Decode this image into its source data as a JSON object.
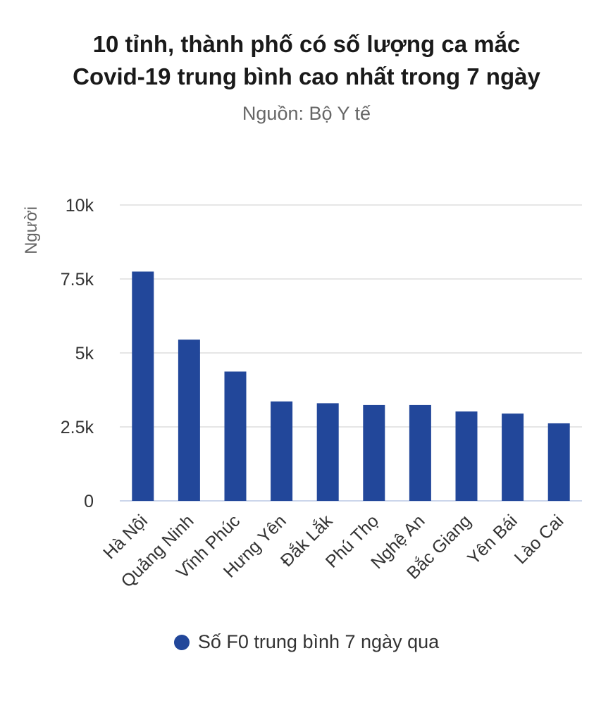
{
  "title_lines": [
    "10 tỉnh, thành phố có số lượng ca mắc",
    "Covid-19 trung bình cao nhất trong 7 ngày"
  ],
  "subtitle": "Nguồn: Bộ Y tế",
  "chart_data": {
    "type": "bar",
    "title": "10 tỉnh, thành phố có số lượng ca mắc Covid-19 trung bình cao nhất trong 7 ngày",
    "subtitle": "Nguồn: Bộ Y tế",
    "ylabel": "Người",
    "xlabel": "",
    "ylim": [
      0,
      10000
    ],
    "yticks": [
      0,
      2500,
      5000,
      7500,
      10000
    ],
    "ytick_labels": [
      "0",
      "2.5k",
      "5k",
      "7.5k",
      "10k"
    ],
    "categories": [
      "Hà Nội",
      "Quảng Ninh",
      "Vĩnh Phúc",
      "Hưng Yên",
      "Đắk Lắk",
      "Phú Thọ",
      "Nghệ An",
      "Bắc Giang",
      "Yên Bái",
      "Lào Cai"
    ],
    "series": [
      {
        "name": "Số F0 trung bình 7 ngày qua",
        "values": [
          7750,
          5450,
          4370,
          3360,
          3300,
          3240,
          3240,
          3020,
          2950,
          2620
        ],
        "color": "#22479a"
      }
    ],
    "grid": true,
    "legend_position": "bottom"
  },
  "colors": {
    "bar": "#22479a",
    "grid": "#e6e6e6",
    "axis": "#ccd6eb"
  }
}
